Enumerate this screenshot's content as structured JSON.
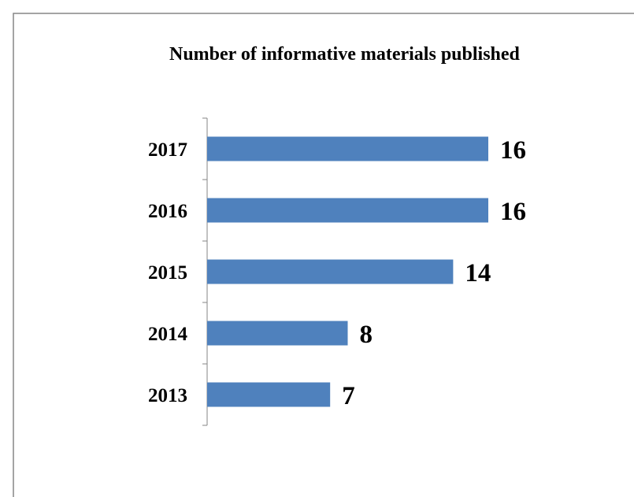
{
  "chart_data": {
    "type": "bar",
    "orientation": "horizontal",
    "title": "Number of informative materials published",
    "categories": [
      "2013",
      "2014",
      "2015",
      "2016",
      "2017"
    ],
    "values": [
      7,
      8,
      14,
      16,
      16
    ],
    "data_labels": [
      "7",
      "8",
      "14",
      "16",
      "16"
    ],
    "xlim": [
      0,
      16
    ],
    "grid": false,
    "legend": "none",
    "bar_color": "#4F81BD"
  }
}
